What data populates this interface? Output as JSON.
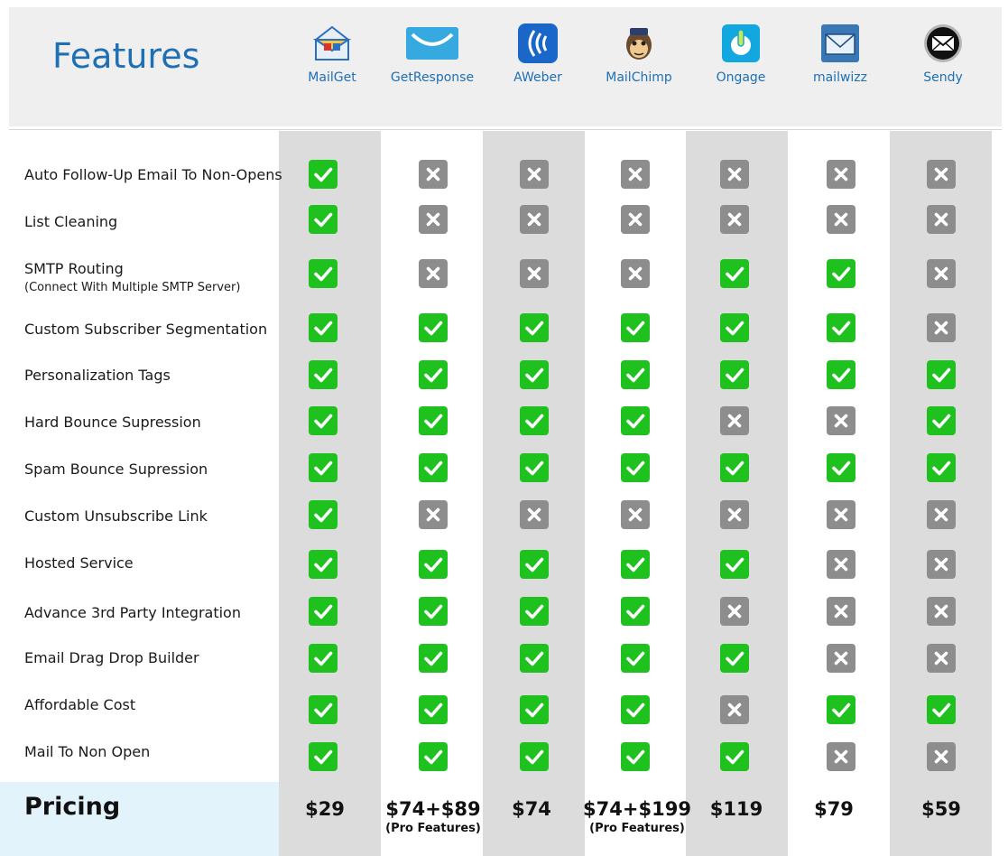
{
  "header": {
    "title": "Features"
  },
  "vendors": [
    {
      "name": "MailGet",
      "icon": "mailget-envelope-icon",
      "color": "#2b6fc2"
    },
    {
      "name": "GetResponse",
      "icon": "getresponse-envelope-icon",
      "color": "#36a9e1"
    },
    {
      "name": "AWeber",
      "icon": "aweber-waves-icon",
      "color": "#1b66c9"
    },
    {
      "name": "MailChimp",
      "icon": "mailchimp-monkey-icon",
      "color": "#2b2b2b"
    },
    {
      "name": "Ongage",
      "icon": "ongage-power-icon",
      "color": "#13a7e0"
    },
    {
      "name": "mailwizz",
      "icon": "mailwizz-envelope-icon",
      "color": "#3a78b5"
    },
    {
      "name": "Sendy",
      "icon": "sendy-envelope-icon",
      "color": "#111111"
    }
  ],
  "features": [
    {
      "label": "Auto Follow-Up Email To Non-Opens",
      "sub": "",
      "values": [
        true,
        false,
        false,
        false,
        false,
        false,
        false
      ]
    },
    {
      "label": "List Cleaning",
      "sub": "",
      "values": [
        true,
        false,
        false,
        false,
        false,
        false,
        false
      ]
    },
    {
      "label": "SMTP Routing",
      "sub": "(Connect With Multiple SMTP Server)",
      "values": [
        true,
        false,
        false,
        false,
        true,
        true,
        false
      ]
    },
    {
      "label": "Custom Subscriber Segmentation",
      "sub": "",
      "values": [
        true,
        true,
        true,
        true,
        true,
        true,
        false
      ]
    },
    {
      "label": "Personalization Tags",
      "sub": "",
      "values": [
        true,
        true,
        true,
        true,
        true,
        true,
        true
      ]
    },
    {
      "label": "Hard Bounce Supression",
      "sub": "",
      "values": [
        true,
        true,
        true,
        true,
        false,
        false,
        true
      ]
    },
    {
      "label": "Spam Bounce Supression",
      "sub": "",
      "values": [
        true,
        true,
        true,
        true,
        true,
        true,
        true
      ]
    },
    {
      "label": "Custom Unsubscribe Link",
      "sub": "",
      "values": [
        true,
        false,
        false,
        false,
        false,
        false,
        false
      ]
    },
    {
      "label": "Hosted Service",
      "sub": "",
      "values": [
        true,
        true,
        true,
        true,
        true,
        false,
        false
      ]
    },
    {
      "label": "Advance 3rd Party Integration",
      "sub": "",
      "values": [
        true,
        true,
        true,
        true,
        false,
        false,
        false
      ]
    },
    {
      "label": "Email Drag Drop Builder",
      "sub": "",
      "values": [
        true,
        true,
        true,
        true,
        true,
        false,
        false
      ]
    },
    {
      "label": "Affordable Cost",
      "sub": "",
      "values": [
        true,
        true,
        true,
        true,
        false,
        true,
        true
      ]
    },
    {
      "label": "Mail To Non Open",
      "sub": "",
      "values": [
        true,
        true,
        true,
        true,
        true,
        false,
        false
      ]
    }
  ],
  "pricing": {
    "label": "Pricing",
    "values": [
      {
        "price": "$29",
        "note": ""
      },
      {
        "price": "$74+$89",
        "note": "(Pro Features)"
      },
      {
        "price": "$74",
        "note": ""
      },
      {
        "price": "$74+$199",
        "note": "(Pro Features)"
      },
      {
        "price": "$119",
        "note": ""
      },
      {
        "price": "$79",
        "note": ""
      },
      {
        "price": "$59",
        "note": ""
      }
    ]
  },
  "colors": {
    "accent": "#1f6fb5",
    "yes": "#1fc11f",
    "no": "#8d8d8d",
    "column_shade": "#dcdcdc",
    "pricing_bg": "#e3f3fb"
  }
}
